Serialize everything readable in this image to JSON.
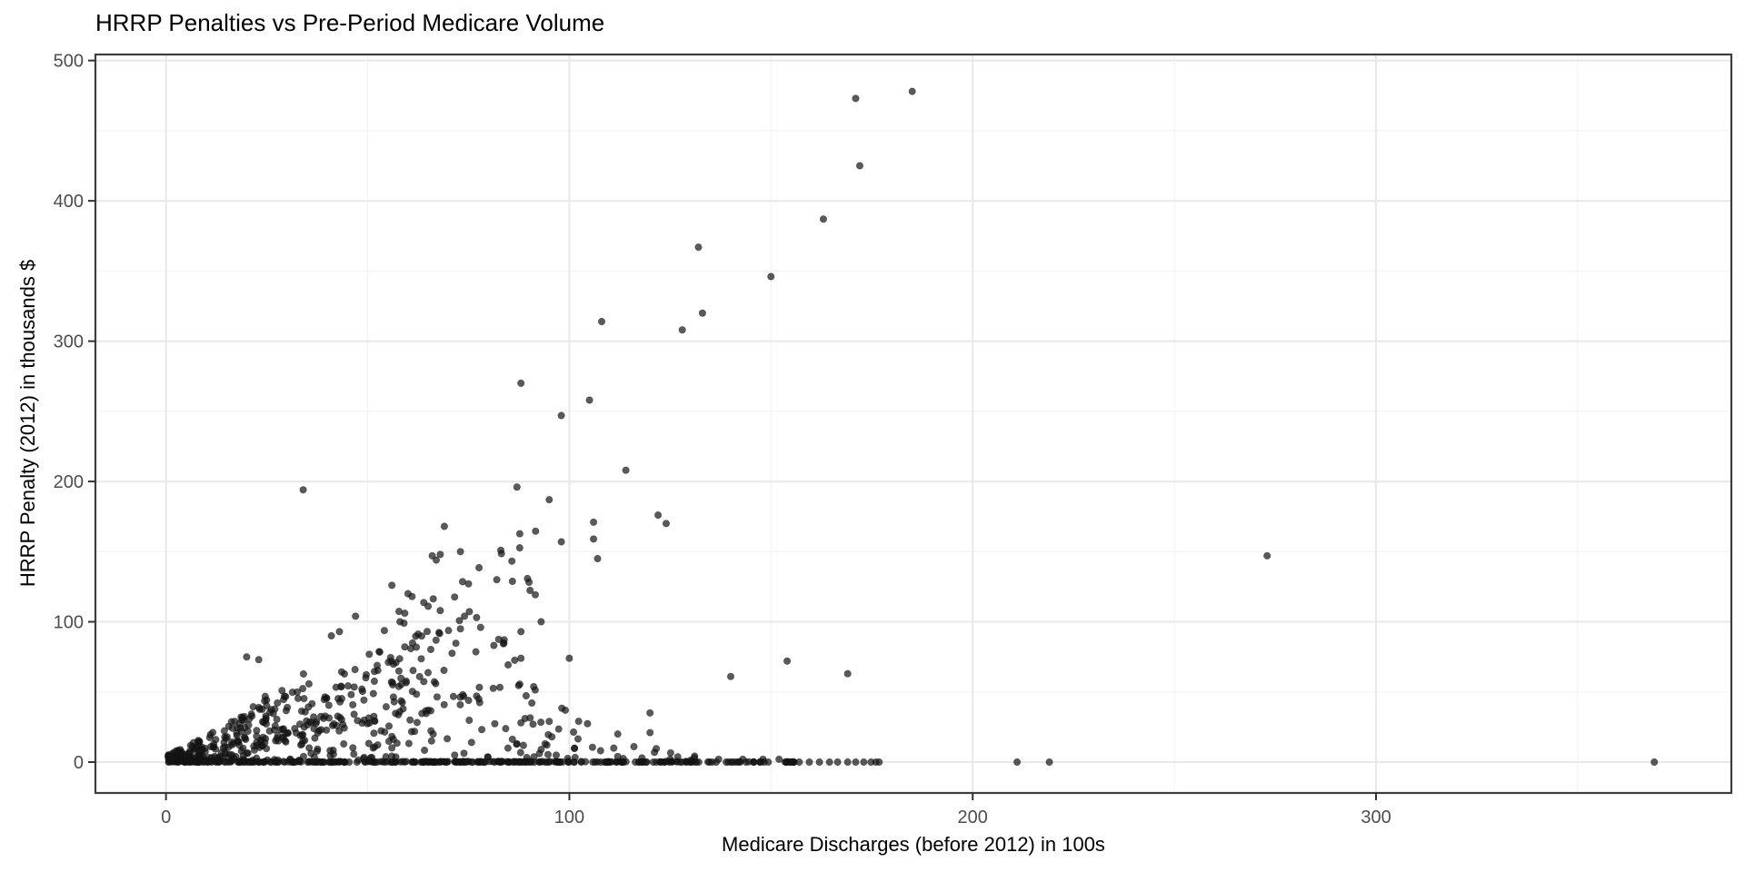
{
  "chart_data": {
    "type": "scatter",
    "title": "HRRP Penalties vs Pre-Period Medicare Volume",
    "xlabel": "Medicare Discharges (before 2012) in 100s",
    "ylabel": "HRRP Penalty (2012) in thousands $",
    "xlim": [
      -17.5,
      388.1
    ],
    "ylim": [
      -22,
      504.3
    ],
    "x_ticks": [
      0,
      100,
      200,
      300
    ],
    "y_ticks": [
      0,
      100,
      200,
      300,
      400,
      500
    ],
    "x_minor_ticks": [
      50,
      150,
      250,
      350
    ],
    "y_minor_ticks": [
      50,
      150,
      250,
      350,
      450
    ],
    "grid": "major+minor",
    "legend": "none",
    "style": {
      "background": "#ffffff",
      "panel_border_color": "#3d3d3d",
      "grid_major_color": "#e8e8e8",
      "grid_minor_color": "#f4f4f4",
      "tick_mark_color": "#333333",
      "tick_label_color": "#4d4d4d",
      "point_color": "#141414",
      "point_opacity": 0.7,
      "point_radius_px": 3.7
    },
    "points": [
      [
        185,
        478
      ],
      [
        171,
        473
      ],
      [
        172,
        425
      ],
      [
        163,
        387
      ],
      [
        150,
        346
      ],
      [
        132,
        367
      ],
      [
        133,
        320
      ],
      [
        128,
        308
      ],
      [
        108,
        314
      ],
      [
        88,
        270
      ],
      [
        105,
        258
      ],
      [
        98,
        247
      ],
      [
        114,
        208
      ],
      [
        87,
        196
      ],
      [
        34,
        194
      ],
      [
        95,
        187
      ],
      [
        122,
        176
      ],
      [
        124,
        170
      ],
      [
        106,
        171
      ],
      [
        106,
        159
      ],
      [
        98,
        157
      ],
      [
        107,
        145
      ],
      [
        273,
        147
      ],
      [
        69,
        168
      ],
      [
        73,
        150
      ],
      [
        83,
        151
      ],
      [
        66,
        147
      ],
      [
        67,
        144
      ],
      [
        68,
        148
      ],
      [
        75,
        127
      ],
      [
        82,
        130
      ],
      [
        56,
        126
      ],
      [
        60,
        120
      ],
      [
        61,
        118
      ],
      [
        65,
        111
      ],
      [
        68,
        108
      ],
      [
        47,
        104
      ],
      [
        58,
        100
      ],
      [
        59,
        99
      ],
      [
        74,
        104
      ],
      [
        73,
        95
      ],
      [
        78,
        96
      ],
      [
        77,
        103
      ],
      [
        93,
        100
      ],
      [
        88,
        93
      ],
      [
        41,
        90
      ],
      [
        43,
        93
      ],
      [
        88,
        74
      ],
      [
        100,
        74
      ],
      [
        20,
        75
      ],
      [
        23,
        73
      ],
      [
        154,
        72
      ],
      [
        140,
        61
      ],
      [
        169,
        63
      ],
      [
        99,
        37
      ],
      [
        120,
        35
      ],
      [
        112,
        20
      ],
      [
        120,
        21
      ],
      [
        116,
        11
      ],
      [
        111,
        10
      ],
      [
        89,
        31
      ],
      [
        88,
        28
      ],
      [
        91,
        27
      ],
      [
        95,
        29
      ],
      [
        87,
        13
      ],
      [
        94,
        13
      ],
      [
        93,
        9
      ],
      [
        112,
        4
      ],
      [
        118,
        3
      ],
      [
        125,
        2
      ],
      [
        131,
        3
      ],
      [
        137,
        2
      ],
      [
        143,
        2
      ],
      [
        148,
        2
      ],
      [
        152,
        2
      ],
      [
        157,
        0
      ],
      [
        159.5,
        0
      ],
      [
        162,
        0
      ],
      [
        164.5,
        0
      ],
      [
        166.5,
        0
      ],
      [
        169,
        0
      ],
      [
        171,
        0
      ],
      [
        173,
        0
      ],
      [
        174.8,
        0
      ],
      [
        176,
        0
      ],
      [
        176.8,
        0
      ],
      [
        211,
        0
      ],
      [
        219,
        0
      ],
      [
        369,
        0
      ]
    ],
    "dense_cloud": {
      "description": "Heavily overplotted mass of hospitals: a solid black row of zero penalties from x=0 to ~156, and a wedge-shaped cloud rising from the origin (penalties mostly below ~1.5x) that thins out above y~100 and beyond x~130.",
      "seed": 42,
      "components": [
        {
          "name": "zero-row-dense",
          "n": 300,
          "x": {
            "min": 0.2,
            "max": 131,
            "pow": 1
          },
          "y": {
            "mode": "const",
            "value": 0,
            "jitter": 0.5
          }
        },
        {
          "name": "zero-row-tail",
          "n": 36,
          "x": {
            "min": 131,
            "max": 156,
            "pow": 1
          },
          "y": {
            "mode": "const",
            "value": 0,
            "jitter": 0.3
          }
        },
        {
          "name": "wedge-core",
          "n": 330,
          "x": {
            "min": 0.5,
            "max": 68,
            "pow": 1.45
          },
          "y": {
            "mode": "wedge",
            "slope": 1.45,
            "offset": 4,
            "pow": 1.35,
            "base": 0.4
          }
        },
        {
          "name": "wedge-upper",
          "n": 130,
          "x": {
            "min": 16,
            "max": 92,
            "pow": 1
          },
          "y": {
            "mode": "slope_band",
            "lo": 0.5,
            "hi": 1.85,
            "pow": 1.5,
            "offset": 2,
            "max": 170
          }
        },
        {
          "name": "mid-scatter",
          "n": 40,
          "x": {
            "min": 68,
            "max": 105,
            "pow": 1
          },
          "y": {
            "mode": "band",
            "lo": 3,
            "hi": 58,
            "pow": 1.6
          }
        },
        {
          "name": "low-right",
          "n": 12,
          "x": {
            "min": 95,
            "max": 135,
            "pow": 1
          },
          "y": {
            "mode": "band",
            "lo": 0.5,
            "hi": 14,
            "pow": 2
          }
        }
      ]
    }
  }
}
